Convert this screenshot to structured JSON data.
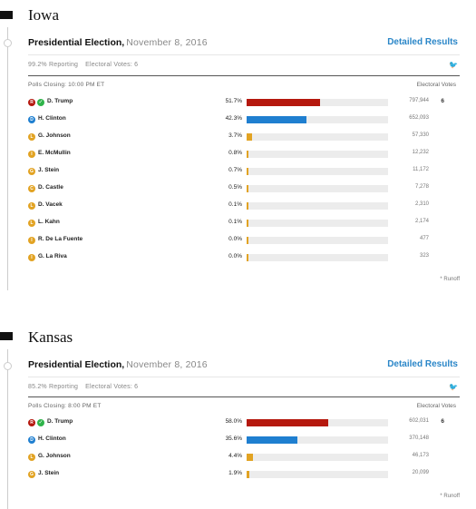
{
  "states": [
    {
      "name": "Iowa",
      "race_title": "Presidential Election,",
      "race_date": "November 8, 2016",
      "detailed_label": "Detailed Results",
      "reporting": "99.2% Reporting",
      "electoral_votes_label": "Electoral Votes: 6",
      "polls_closing": "Polls Closing: 10:00 PM ET",
      "ev_header": "Electoral Votes",
      "runoff_note": "* Runoff",
      "candidates": [
        {
          "badge": "R",
          "color": "#b5180e",
          "winner": true,
          "name": "D. Trump",
          "pct_label": "51.7%",
          "pct": 51.7,
          "votes": "797,944",
          "ev": "6"
        },
        {
          "badge": "D",
          "color": "#1f7fd0",
          "winner": false,
          "name": "H. Clinton",
          "pct_label": "42.3%",
          "pct": 42.3,
          "votes": "652,093",
          "ev": ""
        },
        {
          "badge": "L",
          "color": "#e2a323",
          "winner": false,
          "name": "G. Johnson",
          "pct_label": "3.7%",
          "pct": 3.7,
          "votes": "57,330",
          "ev": ""
        },
        {
          "badge": "I",
          "color": "#e2a323",
          "winner": false,
          "name": "E. McMullin",
          "pct_label": "0.8%",
          "pct": 0.8,
          "votes": "12,232",
          "ev": ""
        },
        {
          "badge": "G",
          "color": "#e2a323",
          "winner": false,
          "name": "J. Stein",
          "pct_label": "0.7%",
          "pct": 0.7,
          "votes": "11,172",
          "ev": ""
        },
        {
          "badge": "C",
          "color": "#e2a323",
          "winner": false,
          "name": "D. Castle",
          "pct_label": "0.5%",
          "pct": 0.5,
          "votes": "7,278",
          "ev": ""
        },
        {
          "badge": "L",
          "color": "#e2a323",
          "winner": false,
          "name": "D. Vacek",
          "pct_label": "0.1%",
          "pct": 0.1,
          "votes": "2,310",
          "ev": ""
        },
        {
          "badge": "L",
          "color": "#e2a323",
          "winner": false,
          "name": "L. Kahn",
          "pct_label": "0.1%",
          "pct": 0.1,
          "votes": "2,174",
          "ev": ""
        },
        {
          "badge": "I",
          "color": "#e2a323",
          "winner": false,
          "name": "R. De La Fuente",
          "pct_label": "0.0%",
          "pct": 0.0,
          "votes": "477",
          "ev": ""
        },
        {
          "badge": "I",
          "color": "#e2a323",
          "winner": false,
          "name": "G. La Riva",
          "pct_label": "0.0%",
          "pct": 0.0,
          "votes": "323",
          "ev": ""
        }
      ]
    },
    {
      "name": "Kansas",
      "race_title": "Presidential Election,",
      "race_date": "November 8, 2016",
      "detailed_label": "Detailed Results",
      "reporting": "85.2% Reporting",
      "electoral_votes_label": "Electoral Votes: 6",
      "polls_closing": "Polls Closing: 8:00 PM ET",
      "ev_header": "Electoral Votes",
      "runoff_note": "* Runoff",
      "candidates": [
        {
          "badge": "R",
          "color": "#b5180e",
          "winner": true,
          "name": "D. Trump",
          "pct_label": "58.0%",
          "pct": 58.0,
          "votes": "602,031",
          "ev": "6"
        },
        {
          "badge": "D",
          "color": "#1f7fd0",
          "winner": false,
          "name": "H. Clinton",
          "pct_label": "35.6%",
          "pct": 35.6,
          "votes": "370,148",
          "ev": ""
        },
        {
          "badge": "L",
          "color": "#e2a323",
          "winner": false,
          "name": "G. Johnson",
          "pct_label": "4.4%",
          "pct": 4.4,
          "votes": "46,173",
          "ev": ""
        },
        {
          "badge": "G",
          "color": "#e2a323",
          "winner": false,
          "name": "J. Stein",
          "pct_label": "1.9%",
          "pct": 1.9,
          "votes": "20,099",
          "ev": ""
        }
      ]
    }
  ]
}
